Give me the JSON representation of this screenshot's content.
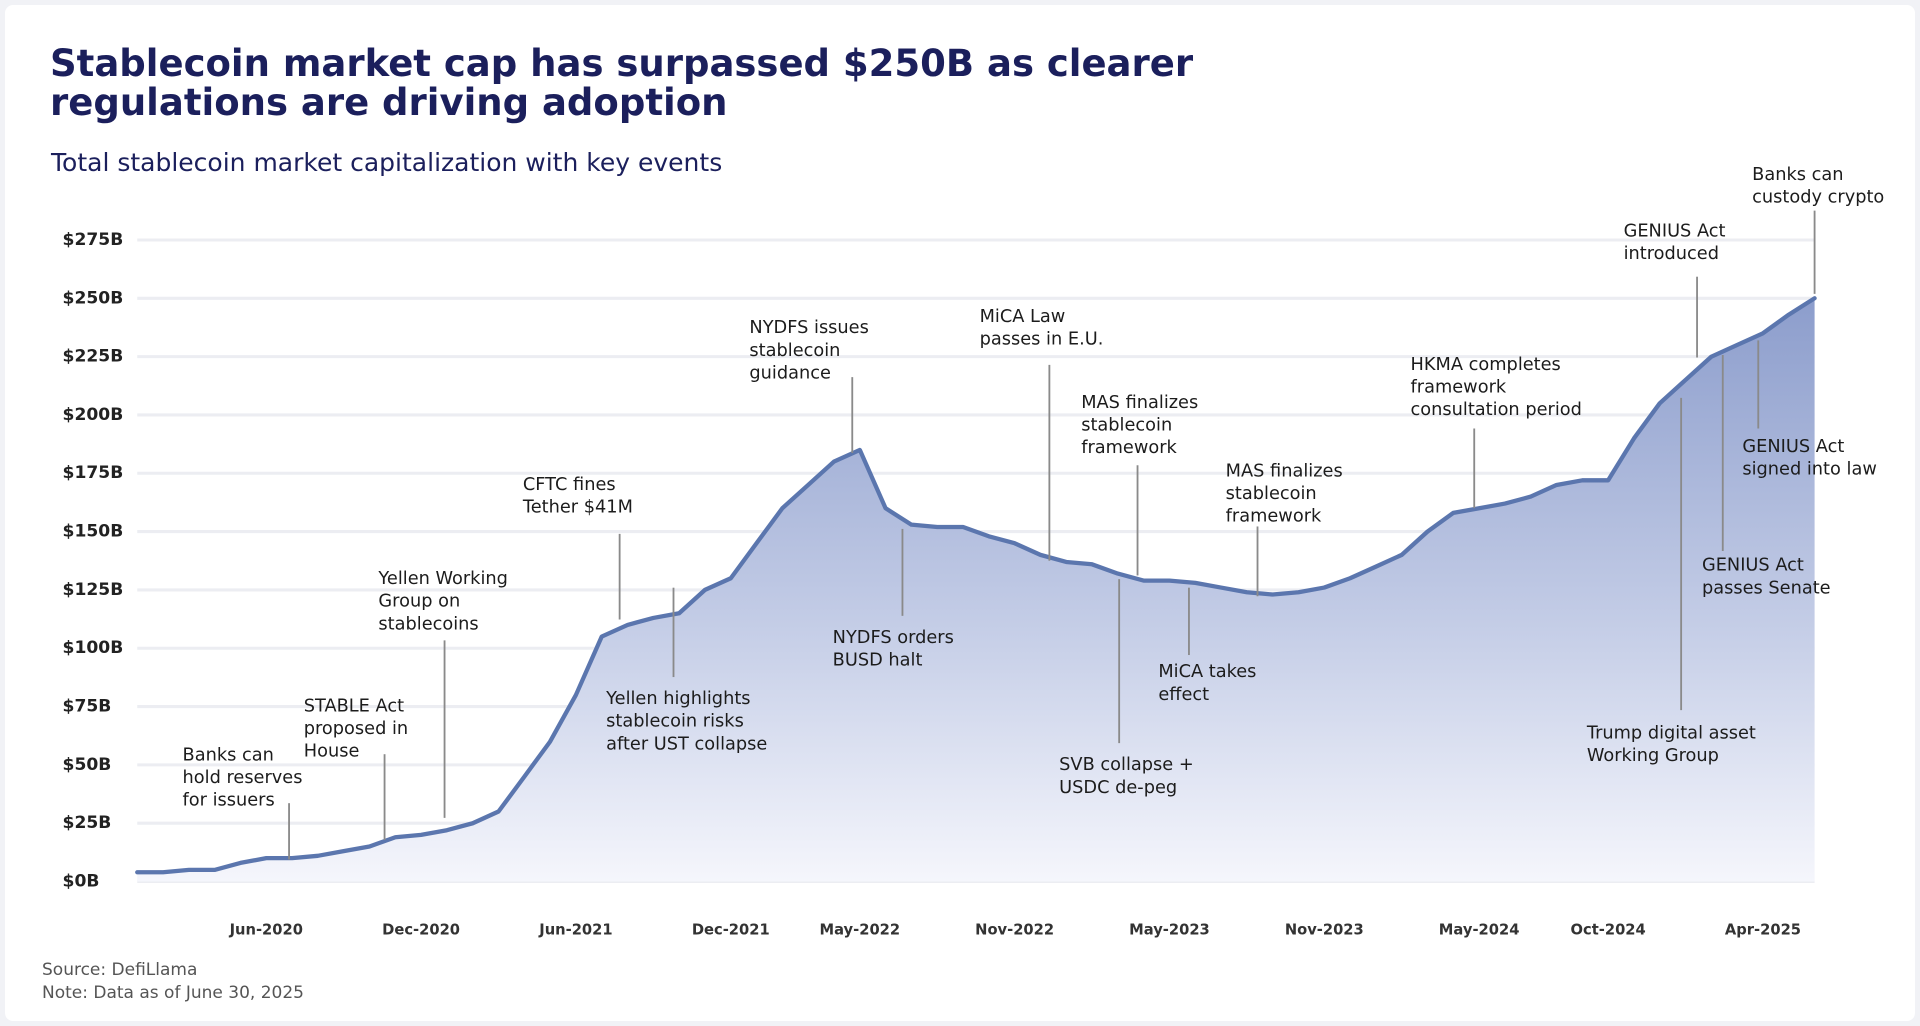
{
  "chart_data": {
    "type": "area",
    "title": "Stablecoin market cap has surpassed $250B as clearer regulations are driving adoption",
    "subtitle": "Total stablecoin market capitalization with key events",
    "source": "Source: DefiLlama",
    "note": "Note: Data as of June 30, 2025",
    "x": [
      "2020-01",
      "2020-02",
      "2020-03",
      "2020-04",
      "2020-05",
      "2020-06",
      "2020-07",
      "2020-08",
      "2020-09",
      "2020-10",
      "2020-11",
      "2020-12",
      "2021-01",
      "2021-02",
      "2021-03",
      "2021-04",
      "2021-05",
      "2021-06",
      "2021-07",
      "2021-08",
      "2021-09",
      "2021-10",
      "2021-11",
      "2021-12",
      "2022-01",
      "2022-02",
      "2022-03",
      "2022-04",
      "2022-05",
      "2022-06",
      "2022-07",
      "2022-08",
      "2022-09",
      "2022-10",
      "2022-11",
      "2022-12",
      "2023-01",
      "2023-02",
      "2023-03",
      "2023-04",
      "2023-05",
      "2023-06",
      "2023-07",
      "2023-08",
      "2023-09",
      "2023-10",
      "2023-11",
      "2023-12",
      "2024-01",
      "2024-02",
      "2024-03",
      "2024-04",
      "2024-05",
      "2024-06",
      "2024-07",
      "2024-08",
      "2024-09",
      "2024-10",
      "2024-11",
      "2024-12",
      "2025-01",
      "2025-02",
      "2025-03",
      "2025-04",
      "2025-05",
      "2025-06"
    ],
    "series": [
      {
        "name": "Total stablecoin market cap",
        "color": "#5b76ae",
        "values": [
          4,
          4,
          5,
          5,
          8,
          10,
          10,
          11,
          13,
          15,
          19,
          20,
          22,
          25,
          30,
          45,
          60,
          80,
          105,
          110,
          113,
          115,
          125,
          130,
          145,
          160,
          170,
          180,
          185,
          160,
          153,
          152,
          152,
          148,
          145,
          140,
          137,
          136,
          132,
          129,
          129,
          128,
          126,
          124,
          123,
          124,
          126,
          130,
          135,
          140,
          150,
          158,
          160,
          162,
          165,
          170,
          172,
          172,
          190,
          205,
          215,
          225,
          230,
          235,
          243,
          250
        ]
      }
    ],
    "xlim": [
      "2020-01",
      "2025-06"
    ],
    "xticks": [
      {
        "value": "2020-06",
        "label": "Jun-2020"
      },
      {
        "value": "2020-12",
        "label": "Dec-2020"
      },
      {
        "value": "2021-06",
        "label": "Jun-2021"
      },
      {
        "value": "2021-12",
        "label": "Dec-2021"
      },
      {
        "value": "2022-05",
        "label": "May-2022"
      },
      {
        "value": "2022-11",
        "label": "Nov-2022"
      },
      {
        "value": "2023-05",
        "label": "May-2023"
      },
      {
        "value": "2023-11",
        "label": "Nov-2023"
      },
      {
        "value": "2024-05",
        "label": "May-2024"
      },
      {
        "value": "2024-10",
        "label": "Oct-2024"
      },
      {
        "value": "2025-04",
        "label": "Apr-2025"
      }
    ],
    "ylim": [
      0,
      275
    ],
    "yticks": [
      {
        "value": 0,
        "label": "$0B"
      },
      {
        "value": 25,
        "label": "$25B"
      },
      {
        "value": 50,
        "label": "$50B"
      },
      {
        "value": 75,
        "label": "$75B"
      },
      {
        "value": 100,
        "label": "$100B"
      },
      {
        "value": 125,
        "label": "$125B"
      },
      {
        "value": 150,
        "label": "$150B"
      },
      {
        "value": 175,
        "label": "$175B"
      },
      {
        "value": 200,
        "label": "$200B"
      },
      {
        "value": 225,
        "label": "$225B"
      },
      {
        "value": 250,
        "label": "$250B"
      },
      {
        "value": 275,
        "label": "$275B"
      }
    ],
    "grid": true,
    "annotations": [
      [
        "Banks can",
        "hold reserves",
        "for issuers"
      ],
      [
        "STABLE Act",
        "proposed in",
        "House"
      ],
      [
        "Yellen Working",
        "Group on",
        "stablecoins"
      ],
      [
        "CFTC fines",
        "Tether $41M"
      ],
      [
        "Yellen highlights",
        "stablecoin risks",
        "after UST collapse"
      ],
      [
        "NYDFS issues",
        "stablecoin",
        "guidance"
      ],
      [
        "NYDFS orders",
        "BUSD halt"
      ],
      [
        "MiCA Law",
        "passes in E.U."
      ],
      [
        "MAS finalizes",
        "stablecoin",
        "framework"
      ],
      [
        "SVB collapse +",
        "USDC de-peg"
      ],
      [
        "MiCA takes",
        "effect"
      ],
      [
        "MAS finalizes",
        "stablecoin",
        "framework"
      ],
      [
        "HKMA completes",
        "framework",
        "consultation period"
      ],
      [
        "Trump digital asset",
        "Working Group"
      ],
      [
        "GENIUS Act",
        "introduced"
      ],
      [
        "GENIUS Act",
        "passes Senate"
      ],
      [
        "GENIUS Act",
        "signed into law"
      ],
      [
        "Banks can",
        "custody crypto"
      ]
    ]
  }
}
